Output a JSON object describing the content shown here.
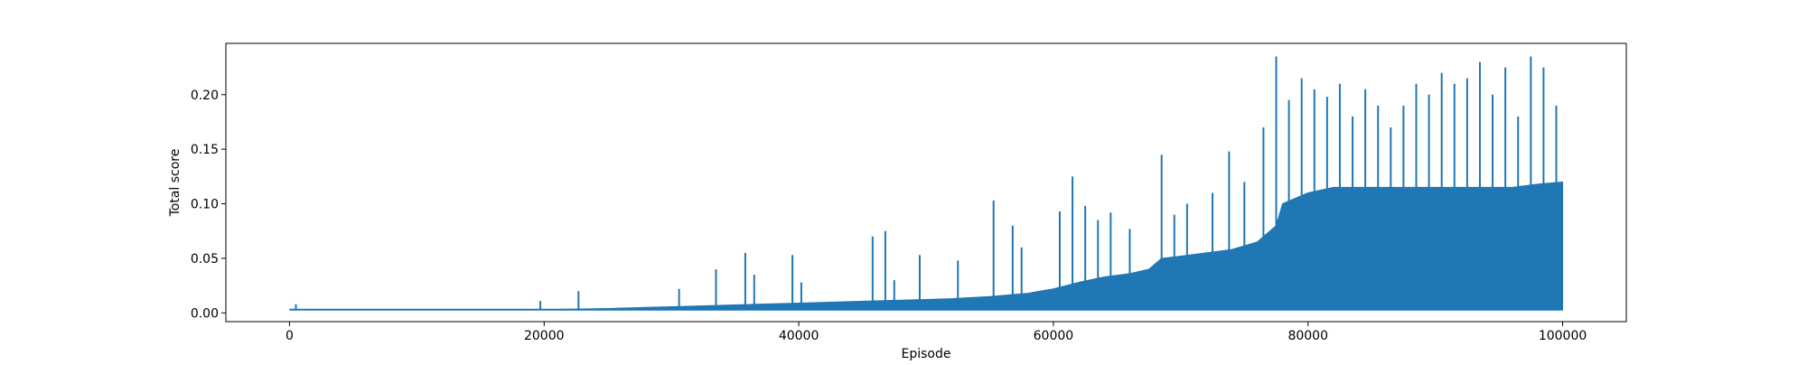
{
  "chart_data": {
    "type": "line",
    "title": "",
    "xlabel": "Episode",
    "ylabel": "Total score",
    "xlim": [
      -5000,
      105000
    ],
    "ylim": [
      -0.008,
      0.247
    ],
    "xticks": [
      0,
      20000,
      40000,
      60000,
      80000,
      100000
    ],
    "xtick_labels": [
      "0",
      "20000",
      "40000",
      "60000",
      "80000",
      "100000"
    ],
    "yticks": [
      0.0,
      0.05,
      0.1,
      0.15,
      0.2
    ],
    "ytick_labels": [
      "0.00",
      "0.05",
      "0.10",
      "0.15",
      "0.20"
    ],
    "grid": false,
    "legend": "none",
    "baseline": 0.003,
    "series": [
      {
        "color": "#1f77b4",
        "envelope": {
          "x": [
            0,
            5000,
            10000,
            15000,
            20000,
            25000,
            28000,
            31000,
            34000,
            37000,
            40000,
            43000,
            46000,
            49000,
            52000,
            55000,
            58000,
            60000,
            62000,
            64000,
            66000,
            67500,
            68500,
            70000,
            72000,
            74000,
            76000,
            77500,
            78000,
            80000,
            82000,
            84000,
            86000,
            88000,
            90000,
            92000,
            94000,
            96000,
            98000,
            100000
          ],
          "y": [
            0.003,
            0.003,
            0.003,
            0.003,
            0.003,
            0.004,
            0.005,
            0.006,
            0.007,
            0.008,
            0.009,
            0.01,
            0.011,
            0.012,
            0.013,
            0.015,
            0.018,
            0.022,
            0.028,
            0.033,
            0.036,
            0.04,
            0.05,
            0.052,
            0.055,
            0.058,
            0.065,
            0.08,
            0.1,
            0.11,
            0.115,
            0.115,
            0.115,
            0.115,
            0.115,
            0.115,
            0.115,
            0.115,
            0.118,
            0.12
          ]
        },
        "spikes": {
          "x": [
            500,
            19700,
            22700,
            30600,
            33500,
            35800,
            36500,
            39500,
            40200,
            45800,
            46800,
            47500,
            49500,
            52500,
            55300,
            56800,
            57500,
            60500,
            61500,
            62500,
            63500,
            64500,
            66000,
            68500,
            69500,
            70500,
            72500,
            73800,
            75000,
            76500,
            77500,
            78500,
            79500,
            80500,
            81500,
            82500,
            83500,
            84500,
            85500,
            86500,
            87500,
            88500,
            89500,
            90500,
            91500,
            92500,
            93500,
            94500,
            95500,
            96500,
            97500,
            98500,
            99500
          ],
          "y": [
            0.008,
            0.011,
            0.02,
            0.022,
            0.04,
            0.055,
            0.035,
            0.053,
            0.028,
            0.07,
            0.075,
            0.03,
            0.053,
            0.048,
            0.103,
            0.08,
            0.06,
            0.093,
            0.125,
            0.098,
            0.085,
            0.092,
            0.077,
            0.145,
            0.09,
            0.1,
            0.11,
            0.148,
            0.12,
            0.17,
            0.235,
            0.195,
            0.215,
            0.205,
            0.198,
            0.21,
            0.18,
            0.205,
            0.19,
            0.17,
            0.19,
            0.21,
            0.2,
            0.22,
            0.21,
            0.215,
            0.23,
            0.2,
            0.225,
            0.18,
            0.235,
            0.225,
            0.19
          ]
        }
      }
    ]
  }
}
